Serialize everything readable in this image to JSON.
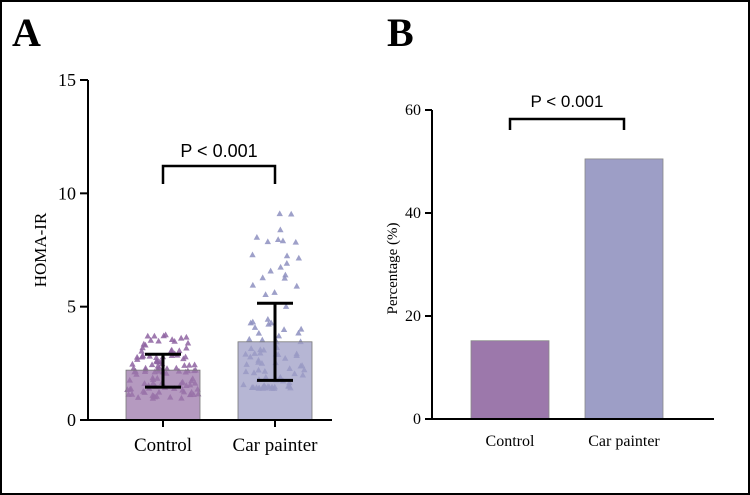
{
  "colors": {
    "control": "#9c78ab",
    "painter": "#9d9ec6",
    "control_points": "#8e63a1",
    "painter_points": "#8d8fc0",
    "axis": "#000000"
  },
  "panels": {
    "a_label": "A",
    "b_label": "B"
  },
  "chart_data": [
    {
      "type": "bar",
      "panel": "A",
      "categories": [
        "Control",
        "Car painter"
      ],
      "values": [
        2.2,
        3.45
      ],
      "error_low": [
        1.45,
        1.75
      ],
      "error_high": [
        2.9,
        5.15
      ],
      "ylabel": "HOMA-IR",
      "ylim": [
        0,
        15
      ],
      "yticks": [
        "0",
        "5",
        "10",
        "15"
      ],
      "significance": "P < 0.001",
      "points_shown": true
    },
    {
      "type": "bar",
      "panel": "B",
      "categories": [
        "Control",
        "Car painter"
      ],
      "values": [
        15.2,
        50.5
      ],
      "ylabel": "Percentage (%)",
      "ylim": [
        0,
        60
      ],
      "yticks": [
        "0",
        "20",
        "40",
        "60"
      ],
      "significance": "P < 0.001"
    }
  ]
}
